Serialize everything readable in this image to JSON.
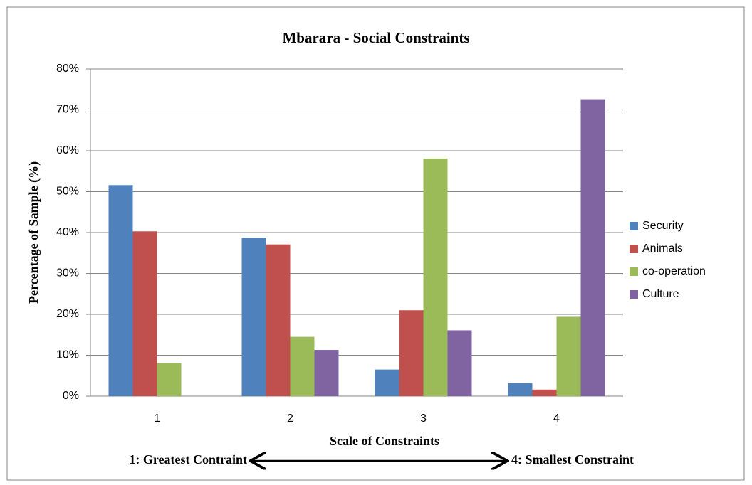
{
  "chart_data": {
    "type": "bar",
    "title": "Mbarara - Social Constraints",
    "x_label": "Scale of Constraints",
    "y_label": "Percentage of Sample (%)",
    "annotations": [
      "1: Greatest Contraint",
      "4: Smallest Constraint"
    ],
    "categories": [
      "1",
      "2",
      "3",
      "4"
    ],
    "series": [
      {
        "name": "Security",
        "color": "#4f81bd",
        "values": [
          51.6,
          38.7,
          6.5,
          3.2
        ]
      },
      {
        "name": "Animals",
        "color": "#c0504d",
        "values": [
          40.3,
          37.1,
          21.0,
          1.6
        ]
      },
      {
        "name": "co-operation",
        "color": "#9bbb59",
        "values": [
          8.1,
          14.5,
          58.1,
          19.4
        ]
      },
      {
        "name": "Culture",
        "color": "#8064a2",
        "values": [
          0,
          11.3,
          16.1,
          72.6
        ]
      }
    ],
    "ylim": [
      0,
      80
    ],
    "yticks": [
      {
        "value": 0,
        "label": "0%"
      },
      {
        "value": 10,
        "label": "10%"
      },
      {
        "value": 20,
        "label": "20%"
      },
      {
        "value": 30,
        "label": "30%"
      },
      {
        "value": 40,
        "label": "40%"
      },
      {
        "value": 50,
        "label": "50%"
      },
      {
        "value": 60,
        "label": "60%"
      },
      {
        "value": 70,
        "label": "70%"
      },
      {
        "value": 80,
        "label": "80%"
      }
    ],
    "grid": true,
    "legend": "right"
  }
}
